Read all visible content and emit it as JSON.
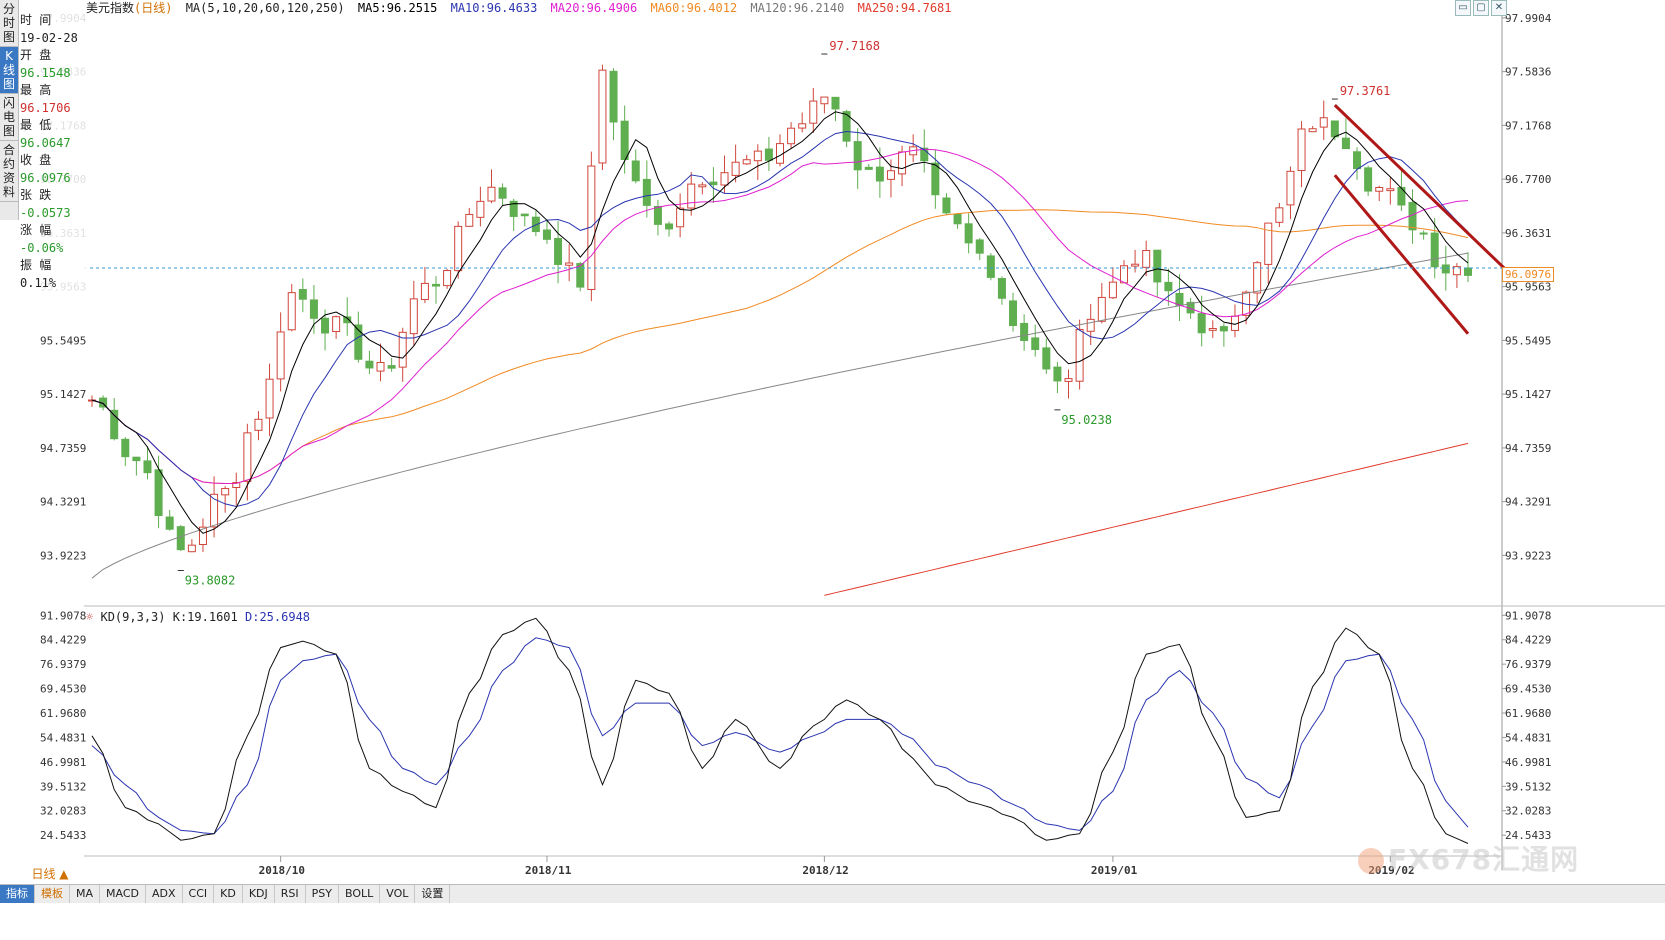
{
  "sidebar": {
    "tabs": [
      {
        "label": "分时图",
        "active": false
      },
      {
        "label": "K线图",
        "active": true
      },
      {
        "label": "闪电图",
        "active": false
      },
      {
        "label": "合约资料",
        "active": false
      }
    ]
  },
  "info_panel": {
    "time_label": "时 间",
    "time_value": "19-02-28",
    "open_label": "开 盘",
    "open_value": "96.1548",
    "high_label": "最 高",
    "high_value": "96.1706",
    "low_label": "最 低",
    "low_value": "96.0647",
    "close_label": "收 盘",
    "close_value": "96.0976",
    "change_label": "张 跌",
    "change_value": "-0.0573",
    "pct_label": "涨 幅",
    "pct_value": "-0.06%",
    "amp_label": "振 幅",
    "amp_value": "0.11%"
  },
  "header": {
    "instrument": "美元指数",
    "period": "(日线)",
    "ma_params": "MA(5,10,20,60,120,250)",
    "ma5": "MA5:96.2515",
    "ma10": "MA10:96.4633",
    "ma20": "MA20:96.4906",
    "ma60": "MA60:96.4012",
    "ma120": "MA120:96.2140",
    "ma250": "MA250:94.7681"
  },
  "kd_header": {
    "params": "KD(9,3,3)",
    "k": "K:19.1601",
    "d": "D:25.6948"
  },
  "window_buttons": [
    "▭",
    "▢",
    "✕"
  ],
  "price_tag": "96.0976",
  "period_button": "日线 ▲",
  "bottom_tabs": [
    "指标",
    "模板",
    "MA",
    "MACD",
    "ADX",
    "CCI",
    "KD",
    "KDJ",
    "RSI",
    "PSY",
    "BOLL",
    "VOL",
    "设置"
  ],
  "watermark": "FX678汇通网",
  "colors": {
    "up": "#d0453a",
    "down": "#5fae50",
    "ma5": "#000000",
    "ma10": "#2a35b0",
    "ma20": "#e020d0",
    "ma60": "#f08a24",
    "ma120": "#888888",
    "ma250": "#e03a2a",
    "k": "#111111",
    "d": "#2a35b0",
    "trend": "#b01818"
  },
  "chart_data": {
    "type": "candlestick",
    "y_ticks": [
      "97.9904",
      "97.5836",
      "97.1768",
      "96.7700",
      "96.3631",
      "95.9563",
      "95.5495",
      "95.1427",
      "94.7359",
      "94.3291",
      "93.9223"
    ],
    "y_range": [
      93.6,
      98.05
    ],
    "x_labels": [
      "2018/10",
      "2018/11",
      "2018/12",
      "2019/01",
      "2019/02"
    ],
    "annotations": [
      {
        "text": "97.7168",
        "value": 97.7168,
        "index": 66
      },
      {
        "text": "93.8082",
        "value": 93.8082,
        "index": 8
      },
      {
        "text": "95.0238",
        "value": 95.0238,
        "index": 87
      },
      {
        "text": "97.3761",
        "value": 97.3761,
        "index": 112
      }
    ],
    "anchors": [
      [
        0,
        95.1
      ],
      [
        4,
        94.65
      ],
      [
        8,
        93.95
      ],
      [
        12,
        94.4
      ],
      [
        15,
        95.0
      ],
      [
        18,
        95.9
      ],
      [
        22,
        95.65
      ],
      [
        26,
        95.3
      ],
      [
        30,
        95.95
      ],
      [
        36,
        96.7
      ],
      [
        40,
        96.4
      ],
      [
        44,
        96.0
      ],
      [
        46,
        97.6
      ],
      [
        48,
        96.9
      ],
      [
        51,
        96.4
      ],
      [
        55,
        96.8
      ],
      [
        60,
        96.9
      ],
      [
        64,
        97.2
      ],
      [
        66,
        97.4
      ],
      [
        70,
        96.8
      ],
      [
        74,
        96.95
      ],
      [
        77,
        96.45
      ],
      [
        80,
        96.2
      ],
      [
        84,
        95.6
      ],
      [
        87,
        95.2
      ],
      [
        91,
        95.9
      ],
      [
        94,
        96.2
      ],
      [
        98,
        95.8
      ],
      [
        102,
        95.55
      ],
      [
        104,
        96.0
      ],
      [
        106,
        96.4
      ],
      [
        110,
        97.2
      ],
      [
        112,
        97.15
      ],
      [
        116,
        96.7
      ],
      [
        119,
        96.45
      ],
      [
        122,
        96.1
      ],
      [
        124,
        96.12
      ]
    ],
    "kd": {
      "y_ticks": [
        "91.9078",
        "84.4229",
        "76.9379",
        "69.4530",
        "61.9680",
        "54.4831",
        "46.9981",
        "39.5132",
        "32.0283",
        "24.5433"
      ],
      "y_range": [
        20,
        92
      ],
      "k_anchors": [
        [
          0,
          55
        ],
        [
          3,
          33
        ],
        [
          6,
          28
        ],
        [
          8,
          23
        ],
        [
          11,
          25
        ],
        [
          14,
          55
        ],
        [
          17,
          82
        ],
        [
          19,
          84
        ],
        [
          22,
          80
        ],
        [
          25,
          45
        ],
        [
          28,
          38
        ],
        [
          31,
          33
        ],
        [
          34,
          68
        ],
        [
          37,
          86
        ],
        [
          40,
          91
        ],
        [
          43,
          75
        ],
        [
          46,
          40
        ],
        [
          49,
          72
        ],
        [
          52,
          68
        ],
        [
          55,
          45
        ],
        [
          58,
          60
        ],
        [
          62,
          45
        ],
        [
          65,
          58
        ],
        [
          68,
          66
        ],
        [
          71,
          60
        ],
        [
          74,
          48
        ],
        [
          76,
          40
        ],
        [
          80,
          34
        ],
        [
          83,
          30
        ],
        [
          86,
          23
        ],
        [
          89,
          25
        ],
        [
          92,
          50
        ],
        [
          95,
          80
        ],
        [
          98,
          83
        ],
        [
          101,
          55
        ],
        [
          104,
          30
        ],
        [
          107,
          32
        ],
        [
          110,
          70
        ],
        [
          113,
          88
        ],
        [
          116,
          80
        ],
        [
          119,
          45
        ],
        [
          122,
          25
        ],
        [
          124,
          22
        ]
      ],
      "d_anchors": [
        [
          0,
          52
        ],
        [
          3,
          40
        ],
        [
          6,
          30
        ],
        [
          8,
          26
        ],
        [
          11,
          25
        ],
        [
          14,
          40
        ],
        [
          17,
          72
        ],
        [
          19,
          78
        ],
        [
          22,
          80
        ],
        [
          25,
          60
        ],
        [
          28,
          45
        ],
        [
          31,
          40
        ],
        [
          34,
          55
        ],
        [
          37,
          75
        ],
        [
          40,
          85
        ],
        [
          43,
          82
        ],
        [
          46,
          55
        ],
        [
          49,
          65
        ],
        [
          52,
          65
        ],
        [
          55,
          52
        ],
        [
          58,
          56
        ],
        [
          62,
          50
        ],
        [
          65,
          55
        ],
        [
          68,
          60
        ],
        [
          71,
          60
        ],
        [
          74,
          54
        ],
        [
          76,
          46
        ],
        [
          80,
          40
        ],
        [
          83,
          34
        ],
        [
          86,
          28
        ],
        [
          89,
          26
        ],
        [
          92,
          38
        ],
        [
          95,
          66
        ],
        [
          98,
          75
        ],
        [
          101,
          62
        ],
        [
          104,
          42
        ],
        [
          107,
          36
        ],
        [
          110,
          58
        ],
        [
          113,
          78
        ],
        [
          116,
          80
        ],
        [
          119,
          60
        ],
        [
          122,
          35
        ],
        [
          124,
          27
        ]
      ]
    }
  }
}
